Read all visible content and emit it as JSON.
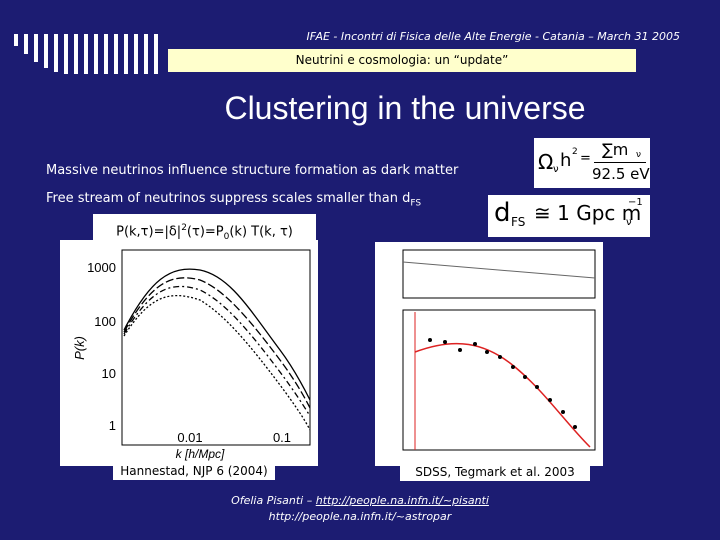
{
  "header": {
    "conference": "IFAE - Incontri di Fisica delle Alte Energie - Catania – March 31 2005",
    "subtitle": "Neutrini e cosmologia: un “update”"
  },
  "title": "Clustering in the universe",
  "bullets": [
    {
      "text": "Massive neutrinos influence structure formation as dark matter"
    },
    {
      "text": "Free stream of neutrinos suppress scales smaller than d",
      "sub": "FS"
    }
  ],
  "formula": {
    "parts": [
      "P(k,τ)=|δ|",
      "2",
      "(τ)=P",
      "0",
      "(k) T(k, τ)"
    ]
  },
  "omega_eq": {
    "omega": "Ω",
    "nu": "ν",
    "h": "h",
    "sq": "2",
    "eq": "=",
    "sum": "∑m",
    "sum_nu": "ν",
    "den": "92.5 eV"
  },
  "dfs_eq": {
    "d": "d",
    "fs": "FS",
    "rel": "≅ 1 Gpc m",
    "nu": "ν",
    "exp": "−1"
  },
  "left_plot": {
    "yticks": [
      "1000",
      "100",
      "10",
      "1"
    ],
    "xticks": [
      "0.01",
      "0.1"
    ],
    "xlabel": "k  [h/Mpc]",
    "ylabel": "P(k)",
    "caption": "Hannestad, NJP 6 (2004)"
  },
  "right_plot": {
    "caption": "SDSS, Tegmark et al. 2003"
  },
  "footer": {
    "author": "Ofelia Pisanti – ",
    "link": "http://people.na.infn.it/~pisanti",
    "link2": "http://people.na.infn.it/~astropar"
  }
}
